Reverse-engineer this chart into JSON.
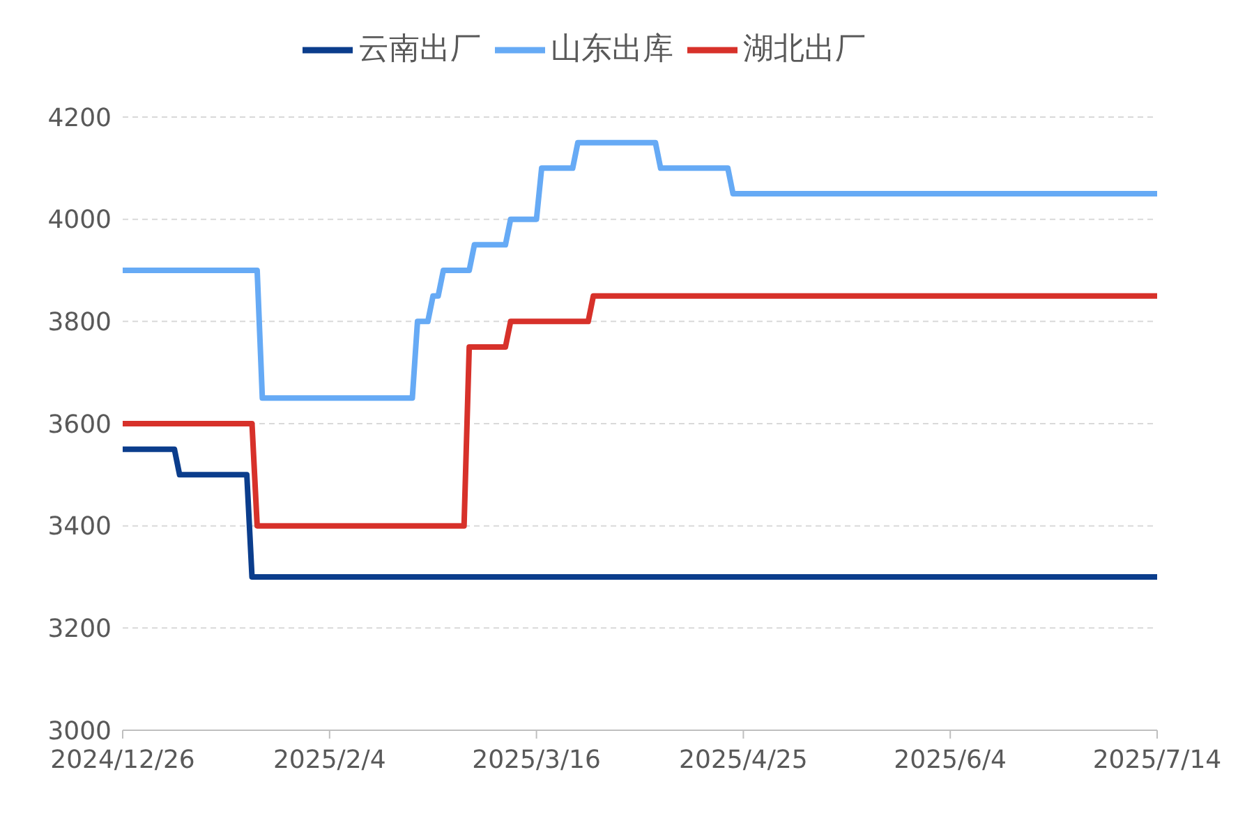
{
  "chart_data": {
    "type": "line",
    "legend": "top",
    "grid": "y",
    "marker": "none",
    "line_style": "solid",
    "xlim": [
      "2024-12-26",
      "2025-07-14"
    ],
    "xticks": [
      {
        "value": "2024-12-26",
        "label": "2024/12/26"
      },
      {
        "value": "2025-02-04",
        "label": "2025/2/4"
      },
      {
        "value": "2025-03-16",
        "label": "2025/3/16"
      },
      {
        "value": "2025-04-25",
        "label": "2025/4/25"
      },
      {
        "value": "2025-06-04",
        "label": "2025/6/4"
      },
      {
        "value": "2025-07-14",
        "label": "2025/7/14"
      }
    ],
    "ylim": [
      3000,
      4200
    ],
    "yticks": [
      3000,
      3200,
      3400,
      3600,
      3800,
      4000,
      4200
    ],
    "series": [
      {
        "name": "云南出厂",
        "color": "#0b3d8c",
        "x": [
          "2024-12-26",
          "2025-01-05",
          "2025-01-06",
          "2025-01-19",
          "2025-01-20",
          "2025-07-14"
        ],
        "values": [
          3550,
          3550,
          3500,
          3500,
          3300,
          3300
        ]
      },
      {
        "name": "湖北出厂",
        "color": "#d7312a",
        "x": [
          "2024-12-26",
          "2025-01-20",
          "2025-01-21",
          "2025-03-02",
          "2025-03-03",
          "2025-03-10",
          "2025-03-11",
          "2025-03-26",
          "2025-03-27",
          "2025-07-14"
        ],
        "values": [
          3600,
          3600,
          3400,
          3400,
          3750,
          3750,
          3800,
          3800,
          3850,
          3850
        ]
      },
      {
        "name": "山东出库",
        "color": "#66aaf5",
        "x": [
          "2024-12-26",
          "2025-01-21",
          "2025-01-22",
          "2025-02-20",
          "2025-02-21",
          "2025-02-23",
          "2025-02-24",
          "2025-02-25",
          "2025-02-26",
          "2025-03-03",
          "2025-03-04",
          "2025-03-10",
          "2025-03-11",
          "2025-03-16",
          "2025-03-17",
          "2025-03-23",
          "2025-03-24",
          "2025-04-08",
          "2025-04-09",
          "2025-04-22",
          "2025-04-23",
          "2025-07-14"
        ],
        "values": [
          3900,
          3900,
          3650,
          3650,
          3800,
          3800,
          3850,
          3850,
          3900,
          3900,
          3950,
          3950,
          4000,
          4000,
          4100,
          4100,
          4150,
          4150,
          4100,
          4100,
          4050,
          4050
        ]
      }
    ]
  }
}
